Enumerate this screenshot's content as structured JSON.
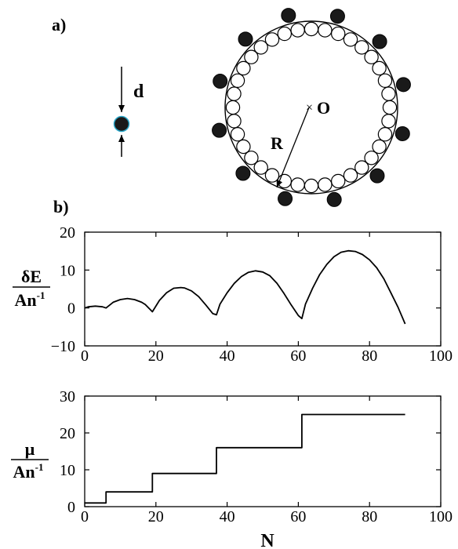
{
  "panel_a": {
    "label": "a)",
    "particle_size_label": "d",
    "radius_label": "R",
    "center_label": "O",
    "center_marker": "×",
    "inner_particle_count": 36,
    "outer_particle_count": 12,
    "colors": {
      "line": "#000000",
      "particle_fill": "#1a1a1a",
      "small_particle_outline": "#2aa7c9"
    }
  },
  "panel_b": {
    "label": "b)"
  },
  "chart_data": [
    {
      "type": "line",
      "title": "",
      "xlabel": "",
      "ylabel": {
        "numerator": "δE",
        "denominator_base": "An",
        "denominator_exp": "-1"
      },
      "xlim": [
        0,
        100
      ],
      "ylim": [
        -10,
        20
      ],
      "x_ticks": [
        0,
        20,
        40,
        60,
        80,
        100
      ],
      "y_ticks": [
        -10,
        0,
        10,
        20
      ],
      "grid": false,
      "series": [
        {
          "x": [
            0,
            1,
            3,
            5,
            6,
            8,
            10,
            12,
            14,
            16,
            17,
            19,
            21,
            23,
            25,
            27,
            28,
            30,
            32,
            34,
            36,
            37,
            38,
            40,
            42,
            44,
            46,
            48,
            50,
            52,
            54,
            56,
            58,
            60,
            61,
            62,
            64,
            66,
            68,
            70,
            72,
            74,
            76,
            78,
            80,
            82,
            84,
            86,
            88,
            90
          ],
          "y": [
            0,
            0.3,
            0.5,
            0.3,
            0,
            1.5,
            2.2,
            2.5,
            2.2,
            1.5,
            0.9,
            -1,
            2,
            4,
            5.2,
            5.4,
            5.3,
            4.5,
            3,
            0.8,
            -1.5,
            -1.8,
            1,
            4,
            6.5,
            8.3,
            9.4,
            9.8,
            9.5,
            8.5,
            6.5,
            3.8,
            0.8,
            -2,
            -2.8,
            1,
            5.2,
            8.8,
            11.5,
            13.5,
            14.7,
            15.1,
            14.9,
            14.1,
            12.7,
            10.6,
            7.7,
            4,
            0.2,
            -4.2
          ]
        }
      ]
    },
    {
      "type": "line",
      "title": "",
      "xlabel": "N",
      "ylabel": {
        "numerator": "μ",
        "denominator_base": "An",
        "denominator_exp": "-1"
      },
      "xlim": [
        0,
        100
      ],
      "ylim": [
        0,
        30
      ],
      "x_ticks": [
        0,
        20,
        40,
        60,
        80,
        100
      ],
      "y_ticks": [
        0,
        10,
        20,
        30
      ],
      "grid": false,
      "series": [
        {
          "x": [
            0,
            6,
            6,
            19,
            19,
            37,
            37,
            61,
            61,
            90
          ],
          "y": [
            1,
            1,
            4,
            4,
            9,
            9,
            16,
            16,
            25,
            25
          ]
        }
      ]
    }
  ]
}
